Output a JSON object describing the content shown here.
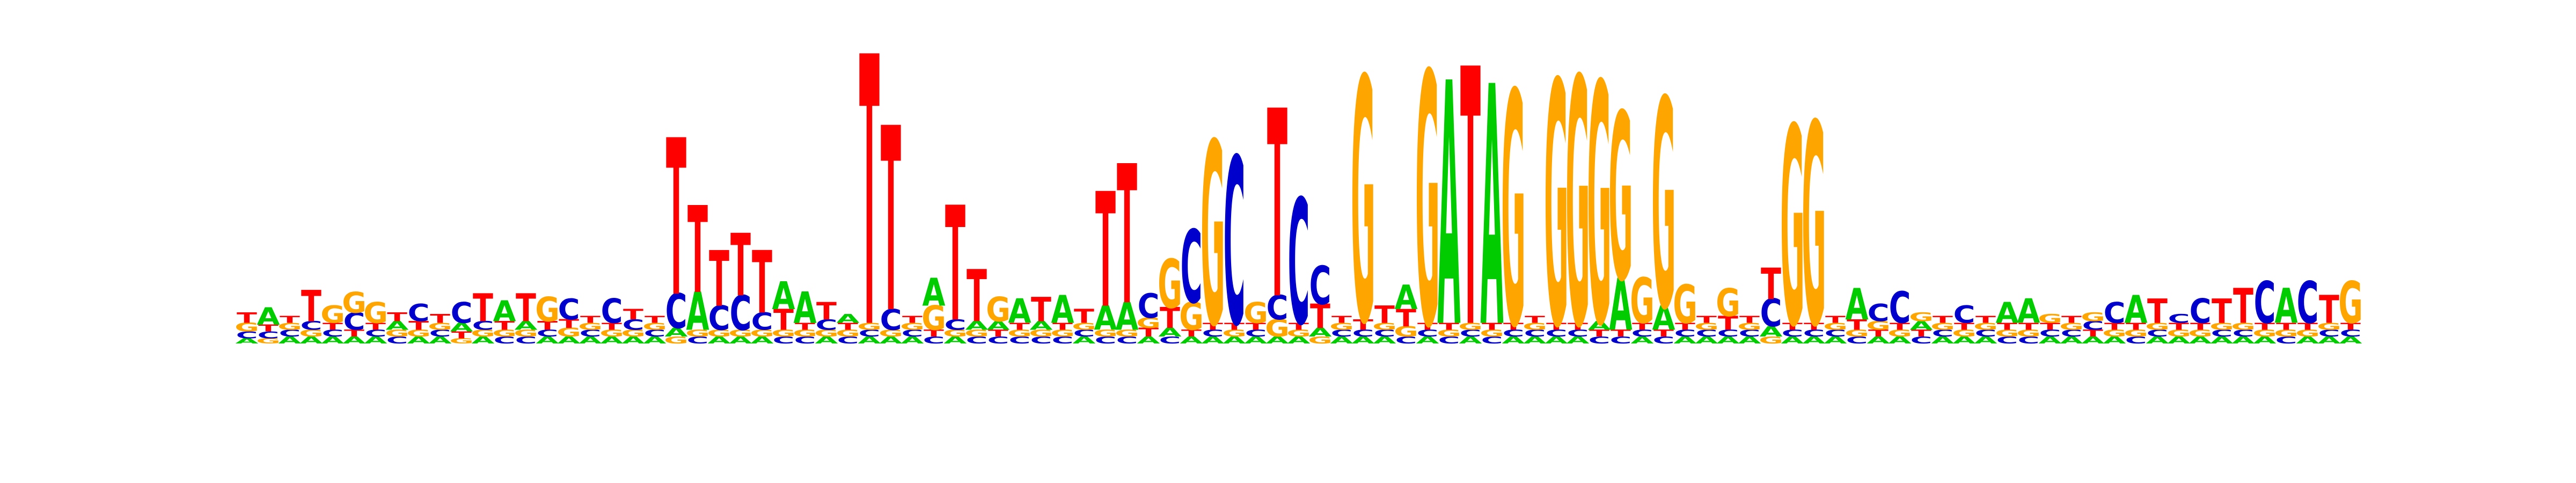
{
  "logo": {
    "type": "sequence-logo",
    "alphabet": [
      "A",
      "C",
      "G",
      "T"
    ],
    "colors": {
      "A": "#00cc00",
      "C": "#0000cc",
      "G": "#ffa500",
      "T": "#ff0000"
    },
    "max_bits": 2,
    "positions": [
      {
        "A": 0.03,
        "C": 0.04,
        "G": 0.05,
        "T": 0.06
      },
      {
        "A": 0.1,
        "C": 0.04,
        "G": 0.03,
        "T": 0.04
      },
      {
        "A": 0.04,
        "C": 0.04,
        "G": 0.04,
        "T": 0.04
      },
      {
        "A": 0.04,
        "C": 0.05,
        "G": 0.04,
        "T": 0.18
      },
      {
        "A": 0.04,
        "C": 0.04,
        "G": 0.1,
        "T": 0.04
      },
      {
        "A": 0.04,
        "C": 0.1,
        "G": 0.12,
        "T": 0.04
      },
      {
        "A": 0.04,
        "C": 0.04,
        "G": 0.12,
        "T": 0.04
      },
      {
        "A": 0.05,
        "C": 0.04,
        "G": 0.04,
        "T": 0.05
      },
      {
        "A": 0.04,
        "C": 0.1,
        "G": 0.04,
        "T": 0.05
      },
      {
        "A": 0.04,
        "C": 0.04,
        "G": 0.04,
        "T": 0.05
      },
      {
        "A": 0.05,
        "C": 0.12,
        "G": 0.03,
        "T": 0.04
      },
      {
        "A": 0.04,
        "C": 0.05,
        "G": 0.04,
        "T": 0.16
      },
      {
        "A": 0.12,
        "C": 0.04,
        "G": 0.04,
        "T": 0.05
      },
      {
        "A": 0.05,
        "C": 0.04,
        "G": 0.04,
        "T": 0.16
      },
      {
        "A": 0.04,
        "C": 0.04,
        "G": 0.14,
        "T": 0.05
      },
      {
        "A": 0.04,
        "C": 0.12,
        "G": 0.05,
        "T": 0.05
      },
      {
        "A": 0.04,
        "C": 0.04,
        "G": 0.04,
        "T": 0.04
      },
      {
        "A": 0.04,
        "C": 0.14,
        "G": 0.04,
        "T": 0.04
      },
      {
        "A": 0.04,
        "C": 0.06,
        "G": 0.04,
        "T": 0.06
      },
      {
        "A": 0.04,
        "C": 0.04,
        "G": 0.04,
        "T": 0.04
      },
      {
        "A": 0.05,
        "C": 0.2,
        "G": 0.04,
        "T": 0.9
      },
      {
        "A": 0.22,
        "C": 0.04,
        "G": 0.04,
        "T": 0.5
      },
      {
        "A": 0.04,
        "C": 0.14,
        "G": 0.04,
        "T": 0.32
      },
      {
        "A": 0.04,
        "C": 0.2,
        "G": 0.04,
        "T": 0.36
      },
      {
        "A": 0.04,
        "C": 0.1,
        "G": 0.04,
        "T": 0.36
      },
      {
        "A": 0.16,
        "C": 0.04,
        "G": 0.04,
        "T": 0.12
      },
      {
        "A": 0.18,
        "C": 0.04,
        "G": 0.04,
        "T": 0.04
      },
      {
        "A": 0.04,
        "C": 0.06,
        "G": 0.04,
        "T": 0.1
      },
      {
        "A": 0.05,
        "C": 0.04,
        "G": 0.04,
        "T": 0.04
      },
      {
        "A": 0.04,
        "C": 0.04,
        "G": 0.04,
        "T": 1.55
      },
      {
        "A": 0.04,
        "C": 0.12,
        "G": 0.04,
        "T": 1.06
      },
      {
        "A": 0.04,
        "C": 0.04,
        "G": 0.04,
        "T": 0.04
      },
      {
        "A": 0.16,
        "C": 0.04,
        "G": 0.14,
        "T": 0.04
      },
      {
        "A": 0.04,
        "C": 0.06,
        "G": 0.04,
        "T": 0.66
      },
      {
        "A": 0.05,
        "C": 0.04,
        "G": 0.04,
        "T": 0.3
      },
      {
        "A": 0.05,
        "C": 0.04,
        "G": 0.14,
        "T": 0.04
      },
      {
        "A": 0.14,
        "C": 0.04,
        "G": 0.04,
        "T": 0.04
      },
      {
        "A": 0.05,
        "C": 0.04,
        "G": 0.04,
        "T": 0.14
      },
      {
        "A": 0.16,
        "C": 0.04,
        "G": 0.04,
        "T": 0.04
      },
      {
        "A": 0.04,
        "C": 0.04,
        "G": 0.04,
        "T": 0.08
      },
      {
        "A": 0.14,
        "C": 0.04,
        "G": 0.04,
        "T": 0.66
      },
      {
        "A": 0.16,
        "C": 0.04,
        "G": 0.04,
        "T": 0.8
      },
      {
        "A": 0.04,
        "C": 0.14,
        "G": 0.06,
        "T": 0.05
      },
      {
        "A": 0.05,
        "C": 0.04,
        "G": 0.28,
        "T": 0.12
      },
      {
        "A": 0.04,
        "C": 0.42,
        "G": 0.16,
        "T": 0.04
      },
      {
        "A": 0.04,
        "C": 0.04,
        "G": 1.05,
        "T": 0.04
      },
      {
        "A": 0.04,
        "C": 0.96,
        "G": 0.04,
        "T": 0.04
      },
      {
        "A": 0.04,
        "C": 0.04,
        "G": 0.12,
        "T": 0.04
      },
      {
        "A": 0.04,
        "C": 0.14,
        "G": 0.1,
        "T": 1.08
      },
      {
        "A": 0.04,
        "C": 0.72,
        "G": 0.04,
        "T": 0.04
      },
      {
        "A": 0.05,
        "C": 0.22,
        "G": 0.04,
        "T": 0.14
      },
      {
        "A": 0.04,
        "C": 0.04,
        "G": 0.04,
        "T": 0.04
      },
      {
        "A": 0.04,
        "C": 0.04,
        "G": 1.4,
        "T": 0.06
      },
      {
        "A": 0.04,
        "C": 0.04,
        "G": 0.04,
        "T": 0.1
      },
      {
        "A": 0.14,
        "C": 0.04,
        "G": 0.06,
        "T": 0.1
      },
      {
        "A": 0.04,
        "C": 0.04,
        "G": 1.45,
        "T": 0.04
      },
      {
        "A": 1.4,
        "C": 0.04,
        "G": 0.04,
        "T": 0.04
      },
      {
        "A": 0.04,
        "C": 0.04,
        "G": 0.04,
        "T": 1.48
      },
      {
        "A": 1.38,
        "C": 0.04,
        "G": 0.04,
        "T": 0.04
      },
      {
        "A": 0.04,
        "C": 0.04,
        "G": 1.34,
        "T": 0.04
      },
      {
        "A": 0.04,
        "C": 0.04,
        "G": 0.04,
        "T": 0.04
      },
      {
        "A": 0.04,
        "C": 0.04,
        "G": 1.4,
        "T": 0.04
      },
      {
        "A": 0.04,
        "C": 0.04,
        "G": 1.42,
        "T": 0.04
      },
      {
        "A": 0.05,
        "C": 0.04,
        "G": 1.38,
        "T": 0.04
      },
      {
        "A": 0.3,
        "C": 0.04,
        "G": 0.96,
        "T": 0.04
      },
      {
        "A": 0.04,
        "C": 0.04,
        "G": 0.26,
        "T": 0.04
      },
      {
        "A": 0.14,
        "C": 0.04,
        "G": 1.2,
        "T": 0.04
      },
      {
        "A": 0.04,
        "C": 0.04,
        "G": 0.22,
        "T": 0.04
      },
      {
        "A": 0.04,
        "C": 0.04,
        "G": 0.04,
        "T": 0.04
      },
      {
        "A": 0.04,
        "C": 0.04,
        "G": 0.16,
        "T": 0.08
      },
      {
        "A": 0.04,
        "C": 0.04,
        "G": 0.04,
        "T": 0.04
      },
      {
        "A": 0.06,
        "C": 0.16,
        "G": 0.04,
        "T": 0.18
      },
      {
        "A": 0.04,
        "C": 0.04,
        "G": 1.14,
        "T": 0.04
      },
      {
        "A": 0.04,
        "C": 0.04,
        "G": 1.16,
        "T": 0.04
      },
      {
        "A": 0.04,
        "C": 0.04,
        "G": 0.04,
        "T": 0.04
      },
      {
        "A": 0.18,
        "C": 0.04,
        "G": 0.04,
        "T": 0.06
      },
      {
        "A": 0.04,
        "C": 0.1,
        "G": 0.05,
        "T": 0.04
      },
      {
        "A": 0.04,
        "C": 0.18,
        "G": 0.04,
        "T": 0.04
      },
      {
        "A": 0.05,
        "C": 0.04,
        "G": 0.05,
        "T": 0.04
      },
      {
        "A": 0.04,
        "C": 0.04,
        "G": 0.04,
        "T": 0.04
      },
      {
        "A": 0.04,
        "C": 0.1,
        "G": 0.04,
        "T": 0.04
      },
      {
        "A": 0.04,
        "C": 0.04,
        "G": 0.04,
        "T": 0.04
      },
      {
        "A": 0.12,
        "C": 0.04,
        "G": 0.04,
        "T": 0.04
      },
      {
        "A": 0.14,
        "C": 0.04,
        "G": 0.04,
        "T": 0.04
      },
      {
        "A": 0.04,
        "C": 0.04,
        "G": 0.05,
        "T": 0.04
      },
      {
        "A": 0.04,
        "C": 0.04,
        "G": 0.04,
        "T": 0.04
      },
      {
        "A": 0.04,
        "C": 0.05,
        "G": 0.05,
        "T": 0.04
      },
      {
        "A": 0.04,
        "C": 0.12,
        "G": 0.04,
        "T": 0.04
      },
      {
        "A": 0.16,
        "C": 0.04,
        "G": 0.04,
        "T": 0.04
      },
      {
        "A": 0.04,
        "C": 0.04,
        "G": 0.04,
        "T": 0.14
      },
      {
        "A": 0.04,
        "C": 0.05,
        "G": 0.04,
        "T": 0.04
      },
      {
        "A": 0.04,
        "C": 0.14,
        "G": 0.04,
        "T": 0.04
      },
      {
        "A": 0.04,
        "C": 0.04,
        "G": 0.04,
        "T": 0.14
      },
      {
        "A": 0.04,
        "C": 0.04,
        "G": 0.04,
        "T": 0.2
      },
      {
        "A": 0.04,
        "C": 0.24,
        "G": 0.04,
        "T": 0.04
      },
      {
        "A": 0.2,
        "C": 0.04,
        "G": 0.04,
        "T": 0.04
      },
      {
        "A": 0.04,
        "C": 0.24,
        "G": 0.04,
        "T": 0.04
      },
      {
        "A": 0.04,
        "C": 0.04,
        "G": 0.04,
        "T": 0.16
      },
      {
        "A": 0.04,
        "C": 0.04,
        "G": 0.24,
        "T": 0.04
      }
    ]
  }
}
